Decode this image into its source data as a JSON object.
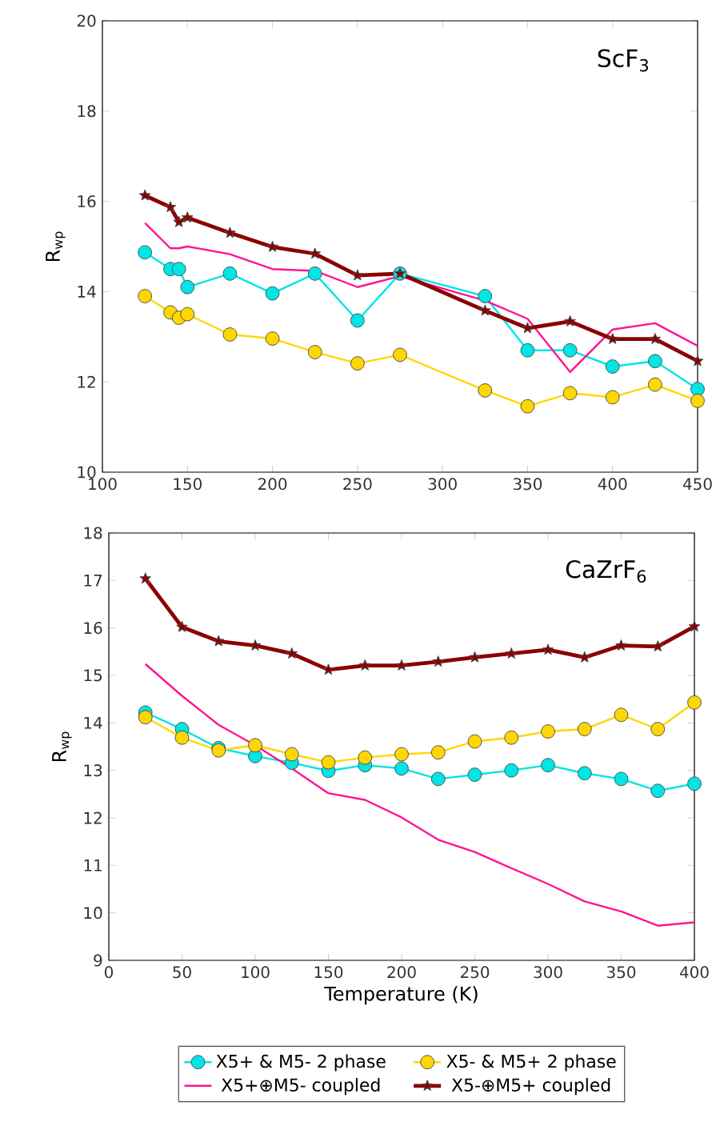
{
  "chart_data": [
    {
      "type": "line",
      "ylabel": "R$_{wp}$",
      "annotations": [
        "ScF$_{3}$"
      ],
      "x": [
        125,
        140,
        145,
        150,
        175,
        200,
        225,
        250,
        275,
        325,
        350,
        375,
        400,
        425,
        450
      ],
      "xlim": [
        100,
        450
      ],
      "xticks": [
        100,
        150,
        200,
        250,
        300,
        350,
        400,
        450
      ],
      "ylim": [
        10,
        20
      ],
      "yticks": [
        10,
        12,
        14,
        16,
        18,
        20
      ],
      "grid": false,
      "series": [
        {
          "color": "#00e5e5",
          "marker": "circle",
          "values": [
            14.87,
            14.5,
            14.5,
            14.1,
            14.4,
            13.96,
            14.4,
            13.36,
            14.4,
            13.9,
            12.7,
            12.7,
            12.34,
            12.46,
            11.84
          ]
        },
        {
          "color": "#ffd700",
          "marker": "circle",
          "values": [
            13.9,
            13.54,
            13.42,
            13.5,
            13.05,
            12.96,
            12.66,
            12.41,
            12.6,
            11.81,
            11.46,
            11.75,
            11.66,
            11.94,
            11.58
          ]
        },
        {
          "color": "#ff1493",
          "marker": "none",
          "values": [
            15.52,
            14.96,
            14.96,
            15.0,
            14.83,
            14.5,
            14.46,
            14.1,
            14.34,
            13.8,
            13.4,
            12.22,
            13.16,
            13.3,
            12.8
          ]
        },
        {
          "color": "#8b0000",
          "marker": "star",
          "values": [
            16.13,
            15.87,
            15.54,
            15.64,
            15.3,
            14.99,
            14.84,
            14.36,
            14.4,
            13.58,
            13.19,
            13.34,
            12.95,
            12.95,
            12.46
          ]
        }
      ]
    },
    {
      "type": "line",
      "xlabel": "Temperature (K)",
      "ylabel": "R$_{wp}$",
      "annotations": [
        "CaZrF$_{6}$"
      ],
      "x": [
        25,
        50,
        75,
        100,
        125,
        150,
        175,
        200,
        225,
        250,
        275,
        300,
        325,
        350,
        375,
        400
      ],
      "xlim": [
        0,
        400
      ],
      "xticks": [
        0,
        50,
        100,
        150,
        200,
        250,
        300,
        350,
        400
      ],
      "ylim": [
        9,
        18
      ],
      "yticks": [
        9,
        10,
        11,
        12,
        13,
        14,
        15,
        16,
        17,
        18
      ],
      "grid": false,
      "legend": "bottom",
      "series": [
        {
          "name": "X5+ & M5- 2 phase",
          "color": "#00e5e5",
          "marker": "circle",
          "values": [
            14.22,
            13.87,
            13.47,
            13.3,
            13.16,
            12.99,
            13.11,
            13.04,
            12.82,
            12.91,
            13.0,
            13.11,
            12.94,
            12.82,
            12.57,
            12.72
          ]
        },
        {
          "name": "X5- & M5+ 2 phase",
          "color": "#ffd700",
          "marker": "circle",
          "values": [
            14.12,
            13.69,
            13.42,
            13.53,
            13.34,
            13.17,
            13.27,
            13.34,
            13.38,
            13.61,
            13.69,
            13.82,
            13.87,
            14.17,
            13.87,
            14.43
          ]
        },
        {
          "name": "X5+⊕M5- coupled",
          "color": "#ff1493",
          "marker": "none",
          "values": [
            15.24,
            14.57,
            13.96,
            13.53,
            13.04,
            12.52,
            12.38,
            12.01,
            11.54,
            11.28,
            10.94,
            10.61,
            10.24,
            10.03,
            9.73,
            9.8
          ]
        },
        {
          "name": "X5-⊕M5+ coupled",
          "color": "#8b0000",
          "marker": "star",
          "values": [
            17.04,
            16.02,
            15.72,
            15.63,
            15.46,
            15.12,
            15.21,
            15.21,
            15.29,
            15.38,
            15.46,
            15.54,
            15.38,
            15.63,
            15.61,
            16.03
          ]
        }
      ]
    }
  ]
}
